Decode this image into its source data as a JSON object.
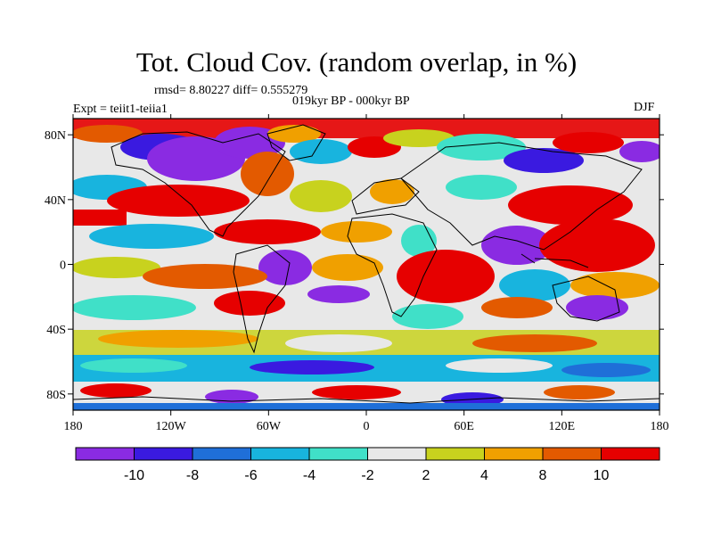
{
  "title": "Tot. Cloud Cov. (random overlap, in %)",
  "stats": "rmsd= 8.80227 diff= 0.555279",
  "experiment": "Expt = teiit1-teiia1",
  "period": "019kyr BP - 000kyr BP",
  "season": "DJF",
  "map": {
    "lon_ticks": [
      {
        "value": -180,
        "label": "180"
      },
      {
        "value": -120,
        "label": "120W"
      },
      {
        "value": -60,
        "label": "60W"
      },
      {
        "value": 0,
        "label": "0"
      },
      {
        "value": 60,
        "label": "60E"
      },
      {
        "value": 120,
        "label": "120E"
      },
      {
        "value": 180,
        "label": "180"
      }
    ],
    "lat_ticks": [
      {
        "value": 80,
        "label": "80N"
      },
      {
        "value": 40,
        "label": "40N"
      },
      {
        "value": 0,
        "label": "0"
      },
      {
        "value": -40,
        "label": "40S"
      },
      {
        "value": -80,
        "label": "80S"
      }
    ],
    "lon_range": [
      -180,
      180
    ],
    "lat_range": [
      -90,
      90
    ]
  },
  "colorbar": {
    "colors": [
      "#8a2be2",
      "#3a1ae0",
      "#1f6fd8",
      "#18b4de",
      "#40e0c8",
      "#e8e8e8",
      "#c8d21e",
      "#f0a000",
      "#e35a00",
      "#e60000"
    ],
    "labels": [
      "-10",
      "-8",
      "-6",
      "-4",
      "-2",
      "2",
      "4",
      "8",
      "10"
    ]
  }
}
